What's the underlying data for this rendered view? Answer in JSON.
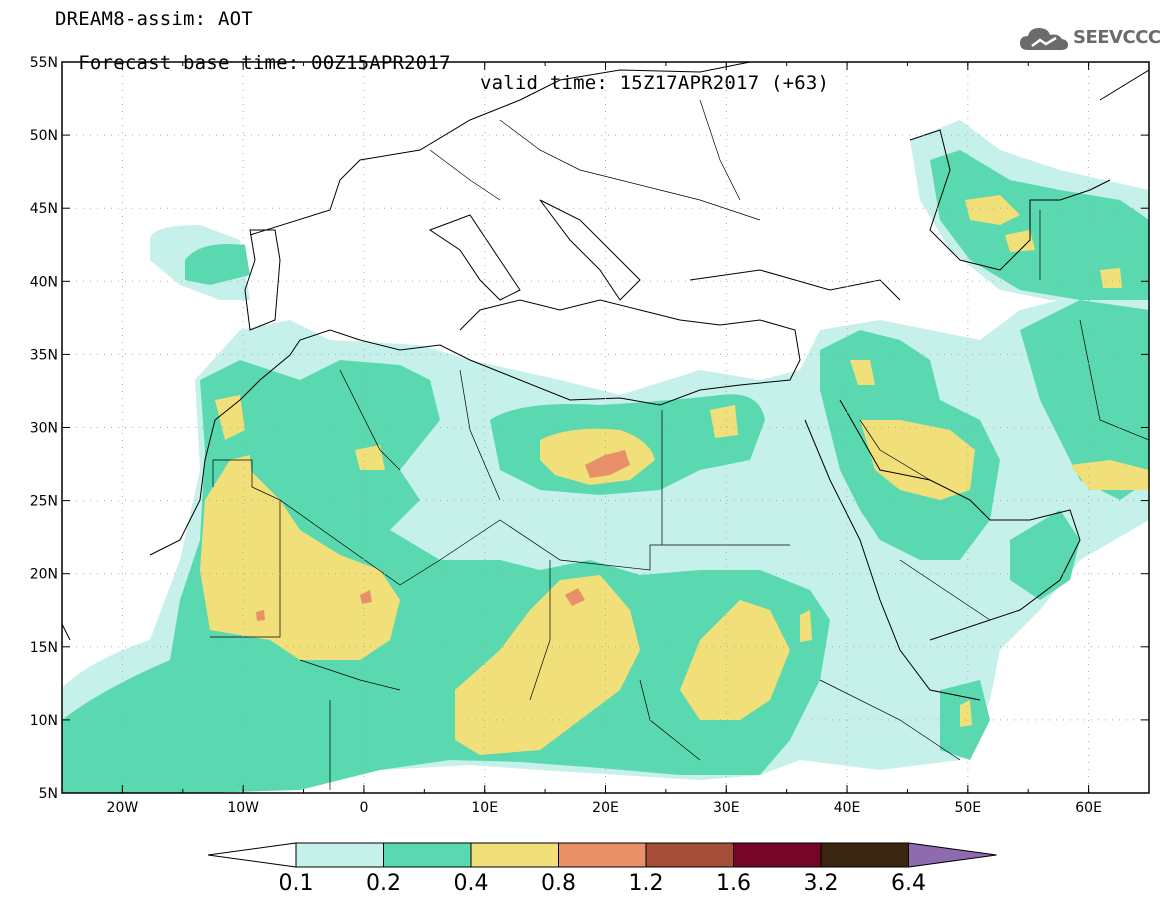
{
  "header": {
    "model_title": "DREAM8-assim: AOT",
    "base_time": "Forecast base time: 00Z15APR2017",
    "valid_time": "valid time: 15Z17APR2017 (+63)"
  },
  "logo": {
    "text": "SEEVCCC",
    "icon": "cloud-icon"
  },
  "map": {
    "lon_labels": [
      "20W",
      "10W",
      "0",
      "10E",
      "20E",
      "30E",
      "40E",
      "50E",
      "60E"
    ],
    "lat_labels": [
      "55N",
      "50N",
      "45N",
      "40N",
      "35N",
      "30N",
      "25N",
      "20N",
      "15N",
      "10N",
      "5N"
    ],
    "lon_range": [
      -25,
      65
    ],
    "lat_range": [
      5,
      55
    ],
    "grid": "dotted"
  },
  "colorbar": {
    "labels": [
      "0.1",
      "0.2",
      "0.4",
      "0.8",
      "1.2",
      "1.6",
      "3.2",
      "6.4"
    ],
    "colors": [
      "#c6f0ea",
      "#5ad9b0",
      "#f1e07a",
      "#e89168",
      "#a64d3a",
      "#75062a",
      "#3a2510",
      "#8e6ab1"
    ],
    "under_color": "#ffffff"
  },
  "fill_colors": {
    "level1": "#c6f0ea",
    "level2": "#5ad9b0",
    "level3": "#f1e07a",
    "level4": "#e89168"
  }
}
